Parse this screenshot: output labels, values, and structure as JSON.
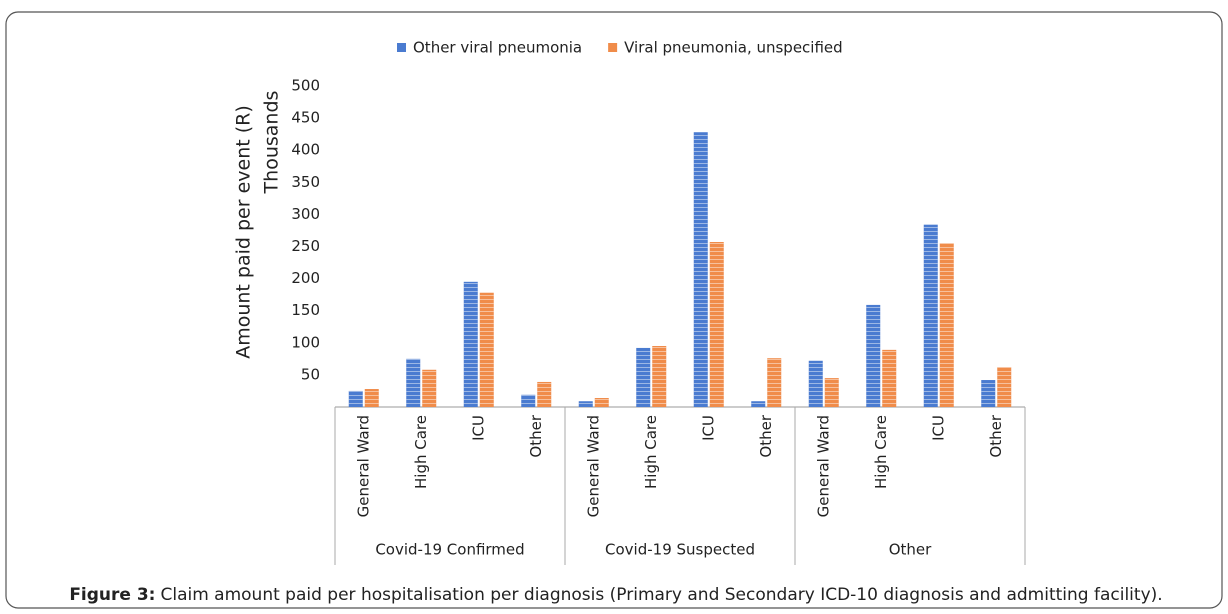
{
  "chart_data": {
    "type": "bar",
    "caption_label": "Figure 3:",
    "caption": "Claim amount paid per hospitalisation per diagnosis (Primary and Secondary ICD-10 diagnosis and admitting facility).",
    "y_label": "Amount paid per event (R)",
    "y_unit": "Thousands",
    "groups": [
      "Covid-19 Confirmed",
      "Covid-19 Suspected",
      "Other"
    ],
    "categories": [
      "General Ward",
      "High Care",
      "ICU",
      "Other",
      "General Ward",
      "High Care",
      "ICU",
      "Other",
      "General Ward",
      "High Care",
      "ICU",
      "Other"
    ],
    "series": [
      {
        "name": "Other viral pneumonia",
        "color": "#4a7bd0",
        "values": [
          25,
          75,
          195,
          19,
          9,
          92,
          428,
          9,
          72,
          159,
          284,
          42
        ]
      },
      {
        "name": "Viral pneumonia, unspecified",
        "color": "#f08c4a",
        "values": [
          28,
          58,
          178,
          39,
          14,
          95,
          257,
          76,
          45,
          89,
          255,
          62
        ]
      }
    ],
    "ylim": [
      0,
      500
    ],
    "yticks": [
      50,
      100,
      150,
      200,
      250,
      300,
      350,
      400,
      450,
      500
    ],
    "legend": "top"
  }
}
